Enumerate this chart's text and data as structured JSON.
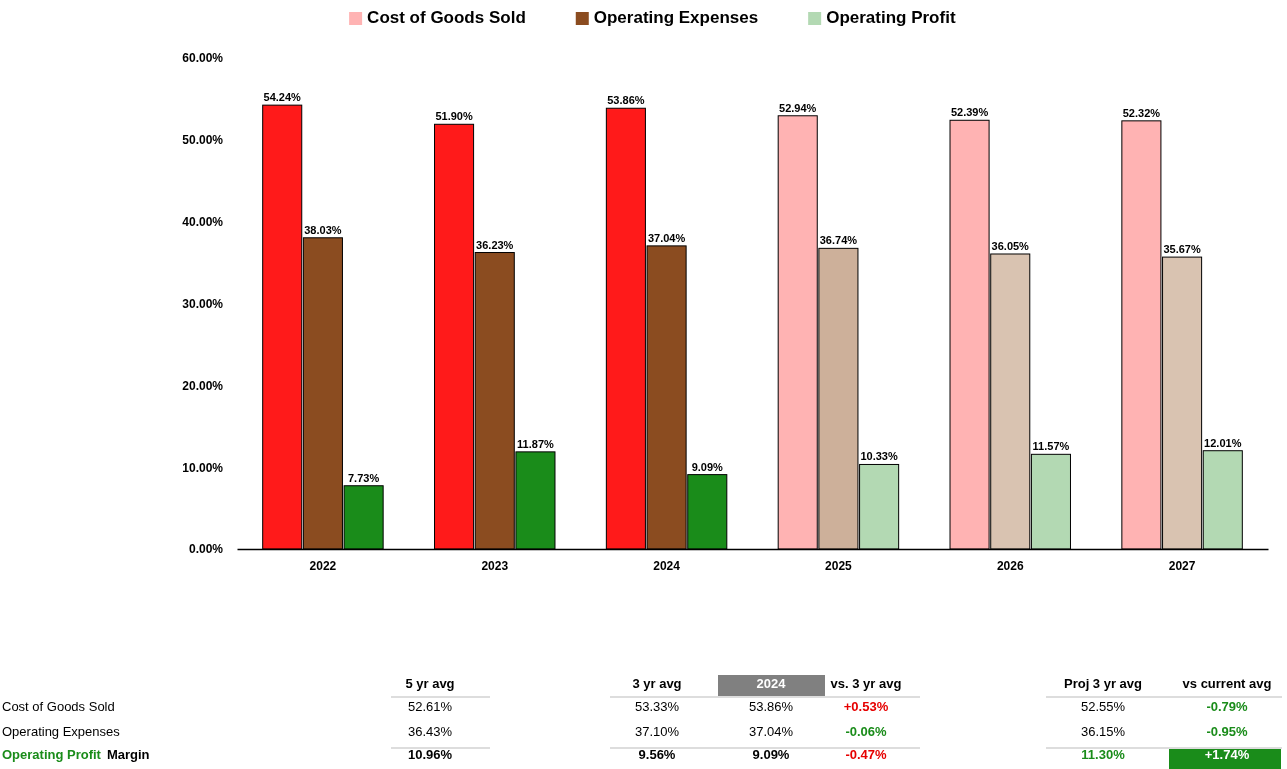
{
  "chart_data": [
    {
      "type": "bar",
      "categories": [
        "2022",
        "2023",
        "2024",
        "2025",
        "2026",
        "2027"
      ],
      "series": [
        {
          "name": "Cost of Goods Sold",
          "color": "#ffb3b3",
          "colors": [
            "#ff1a1a",
            "#ff1a1a",
            "#ff1a1a",
            "#ffb3b3",
            "#ffb3b3",
            "#ffb3b3"
          ],
          "values": [
            54.24,
            51.9,
            53.86,
            52.94,
            52.39,
            52.32
          ]
        },
        {
          "name": "Operating Expenses",
          "color": "#8b4c20",
          "colors": [
            "#8b4c20",
            "#8b4c20",
            "#8b4c20",
            "#cdb09a",
            "#d9c3b1",
            "#d9c3b1"
          ],
          "values": [
            38.03,
            36.23,
            37.04,
            36.74,
            36.05,
            35.67
          ]
        },
        {
          "name": "Operating Profit",
          "color": "#b3d9b3",
          "colors": [
            "#1a8c1a",
            "#1a8c1a",
            "#1a8c1a",
            "#b3d9b3",
            "#b3d9b3",
            "#b3d9b3"
          ],
          "values": [
            7.73,
            11.87,
            9.09,
            10.33,
            11.57,
            12.01
          ]
        }
      ],
      "ylim": [
        0,
        60
      ],
      "yticks": [
        {
          "value": 0,
          "label": "0.00%"
        },
        {
          "value": 10,
          "label": "10.00%"
        },
        {
          "value": 20,
          "label": "20.00%"
        },
        {
          "value": 30,
          "label": "30.00%"
        },
        {
          "value": 40,
          "label": "40.00%"
        },
        {
          "value": 50,
          "label": "50.00%"
        },
        {
          "value": 60,
          "label": "60.00%"
        }
      ],
      "value_labels": [
        [
          "54.24%",
          "51.90%",
          "53.86%",
          "52.94%",
          "52.39%",
          "52.32%"
        ],
        [
          "38.03%",
          "36.23%",
          "37.04%",
          "36.74%",
          "36.05%",
          "35.67%"
        ],
        [
          "7.73%",
          "11.87%",
          "9.09%",
          "10.33%",
          "11.57%",
          "12.01%"
        ]
      ],
      "legend": "top"
    },
    {
      "type": "other",
      "annotations": [
        "5 yr avg",
        "3 yr avg",
        "2024",
        "vs. 3 yr avg",
        "Proj 3 yr avg",
        "vs current avg",
        "Cost of Goods Sold",
        "Operating Expenses",
        "Operating Profit",
        "Margin",
        "52.61%",
        "53.33%",
        "53.86%",
        "+0.53%",
        "52.55%",
        "-0.79%",
        "36.43%",
        "37.10%",
        "37.04%",
        "-0.06%",
        "36.15%",
        "-0.95%",
        "10.96%",
        "9.56%",
        "9.09%",
        "-0.47%",
        "11.30%",
        "+1.74%"
      ]
    }
  ]
}
